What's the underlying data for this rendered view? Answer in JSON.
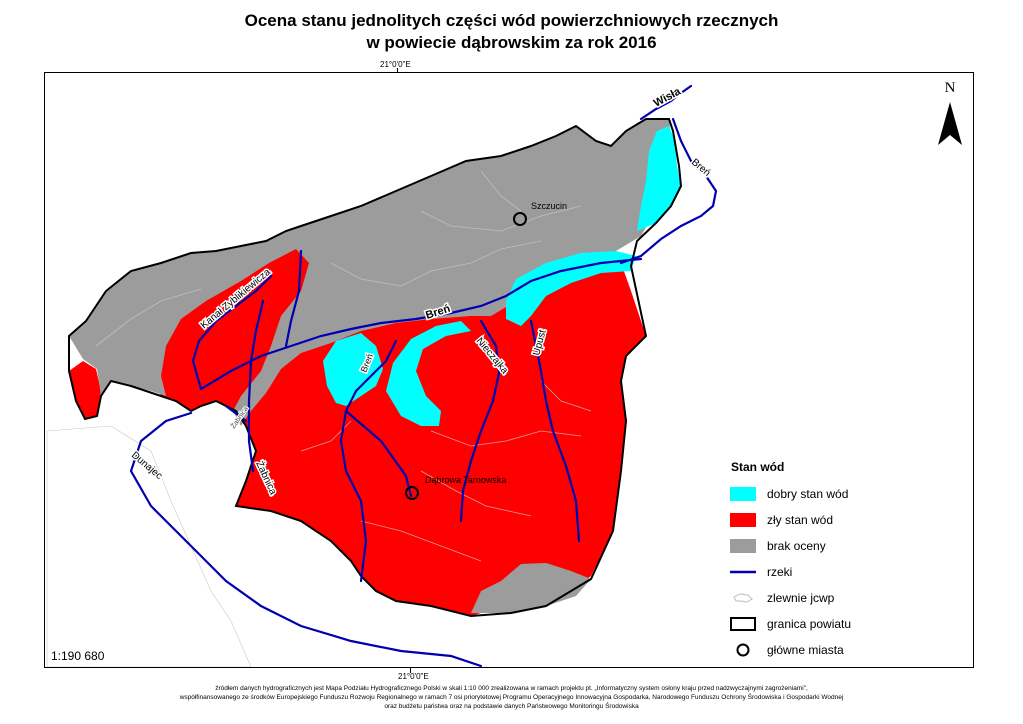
{
  "title_line1": "Ocena stanu jednolitych części wód powierzchniowych rzecznych",
  "title_line2": "w powiecie dąbrowskim za rok 2016",
  "coord_top": "21°0'0\"E",
  "coord_bottom": "21°0'0\"E",
  "north_label": "N",
  "scale": "1:190 680",
  "cities": [
    {
      "name": "Szczucin"
    },
    {
      "name": "Dąbrowa Tarnowska"
    }
  ],
  "rivers": [
    "Wisła",
    "Breń",
    "Breń",
    "Dunajec",
    "Kanał Zyblikiewicza",
    "Breń",
    "Nieczajka",
    "Upust",
    "Żabnica",
    "Żabnica"
  ],
  "legend": {
    "title": "Stan wód",
    "items": [
      {
        "label": "dobry stan wód",
        "color": "#00ffff"
      },
      {
        "label": "zły stan wód",
        "color": "#ff0000"
      },
      {
        "label": "brak oceny",
        "color": "#9c9c9c"
      },
      {
        "label": "rzeki",
        "color": "#0000b0"
      },
      {
        "label": "zlewnie jcwp",
        "color": "#d0d0d0"
      },
      {
        "label": "granica powiatu",
        "color": "#000000"
      },
      {
        "label": "główne miasta",
        "color": "#000000"
      }
    ]
  },
  "footer": [
    "źródłem danych hydrograficznych jest Mapa Podziału Hydrograficznego Polski w skali 1:10 000 zrealizowana w ramach projektu pt. „Informatyczny system osłony kraju przed nadzwyczajnymi zagrożeniami\",",
    "współfinansowanego ze środków Europejskiego Funduszu Rozwoju Regionalnego w ramach 7 osi priorytetowej Programu Operacyjnego Innowacyjna Gospodarka, Narodowego Funduszu Ochrony Środowiska i Gospodarki Wodnej",
    "oraz budżetu państwa oraz na podstawie danych Państwowego Monitoringu Środowiska"
  ]
}
